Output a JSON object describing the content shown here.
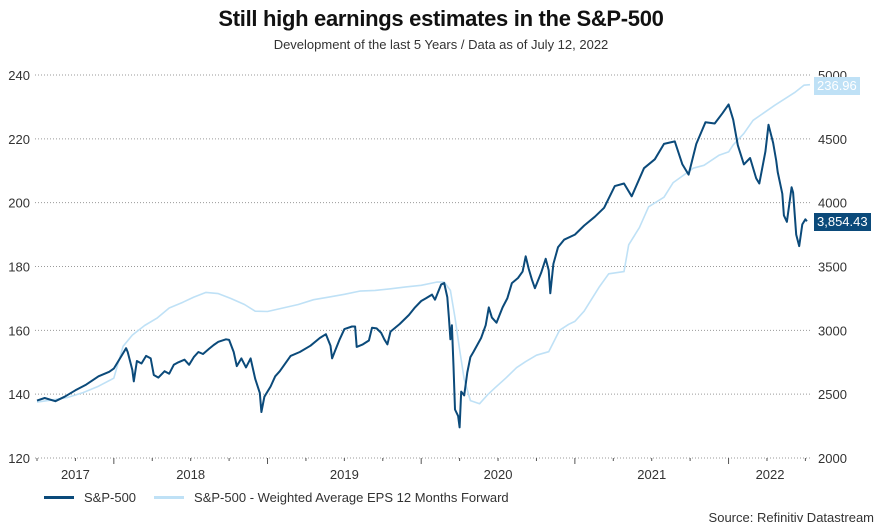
{
  "header": {
    "title": "Still high earnings estimates in the S&P-500",
    "subtitle": "Development of the last 5 Years / Data as of July 12, 2022"
  },
  "source": "Source: Refinitiv Datastream",
  "colors": {
    "sp500": "#0b4a7a",
    "eps": "#bfe1f6",
    "grid": "#9a9a9a",
    "tick": "#555555"
  },
  "end_labels": {
    "eps": "236.96",
    "sp500": "3,854.43"
  },
  "chart_data": {
    "type": "line",
    "title": "Still high earnings estimates in the S&P-500",
    "subtitle": "Development of the last 5 Years / Data as of July 12, 2022",
    "xlabel": "",
    "x_range": [
      2017.5,
      2022.53
    ],
    "x_ticks": [
      2018,
      2019,
      2020,
      2021,
      2022
    ],
    "x_tick_labels": [
      {
        "label": "2017",
        "at": 2017.75
      },
      {
        "label": "2018",
        "at": 2018.5
      },
      {
        "label": "2019",
        "at": 2019.5
      },
      {
        "label": "2020",
        "at": 2020.5
      },
      {
        "label": "2021",
        "at": 2021.5
      },
      {
        "label": "2022",
        "at": 2022.27
      }
    ],
    "y_left": {
      "label": "",
      "range": [
        120,
        240
      ],
      "ticks": [
        120,
        140,
        160,
        180,
        200,
        220,
        240
      ]
    },
    "y_right": {
      "label": "",
      "range": [
        2000,
        5000
      ],
      "ticks": [
        2000,
        2500,
        3000,
        3500,
        4000,
        4500,
        5000
      ]
    },
    "grid": true,
    "legend_position": "bottom-left",
    "series": [
      {
        "name": "S&P-500",
        "axis": "right",
        "last_value": 3854.43,
        "points": [
          [
            2017.5,
            2450
          ],
          [
            2017.55,
            2470
          ],
          [
            2017.62,
            2445
          ],
          [
            2017.68,
            2480
          ],
          [
            2017.75,
            2530
          ],
          [
            2017.82,
            2575
          ],
          [
            2017.9,
            2640
          ],
          [
            2017.97,
            2675
          ],
          [
            2018.0,
            2700
          ],
          [
            2018.04,
            2780
          ],
          [
            2018.08,
            2860
          ],
          [
            2018.09,
            2830
          ],
          [
            2018.12,
            2690
          ],
          [
            2018.13,
            2600
          ],
          [
            2018.15,
            2760
          ],
          [
            2018.18,
            2740
          ],
          [
            2018.21,
            2800
          ],
          [
            2018.24,
            2780
          ],
          [
            2018.26,
            2650
          ],
          [
            2018.29,
            2630
          ],
          [
            2018.33,
            2680
          ],
          [
            2018.36,
            2660
          ],
          [
            2018.39,
            2730
          ],
          [
            2018.42,
            2750
          ],
          [
            2018.46,
            2770
          ],
          [
            2018.49,
            2730
          ],
          [
            2018.52,
            2790
          ],
          [
            2018.55,
            2830
          ],
          [
            2018.58,
            2815
          ],
          [
            2018.62,
            2855
          ],
          [
            2018.65,
            2885
          ],
          [
            2018.68,
            2910
          ],
          [
            2018.73,
            2930
          ],
          [
            2018.75,
            2925
          ],
          [
            2018.78,
            2830
          ],
          [
            2018.8,
            2720
          ],
          [
            2018.83,
            2780
          ],
          [
            2018.86,
            2710
          ],
          [
            2018.89,
            2780
          ],
          [
            2018.92,
            2620
          ],
          [
            2018.95,
            2510
          ],
          [
            2018.96,
            2360
          ],
          [
            2018.98,
            2480
          ],
          [
            2019.02,
            2560
          ],
          [
            2019.05,
            2640
          ],
          [
            2019.08,
            2680
          ],
          [
            2019.15,
            2800
          ],
          [
            2019.21,
            2830
          ],
          [
            2019.28,
            2880
          ],
          [
            2019.34,
            2940
          ],
          [
            2019.38,
            2970
          ],
          [
            2019.41,
            2880
          ],
          [
            2019.42,
            2780
          ],
          [
            2019.44,
            2840
          ],
          [
            2019.47,
            2930
          ],
          [
            2019.5,
            3010
          ],
          [
            2019.55,
            3030
          ],
          [
            2019.57,
            3030
          ],
          [
            2019.58,
            2870
          ],
          [
            2019.62,
            2890
          ],
          [
            2019.66,
            2920
          ],
          [
            2019.68,
            3020
          ],
          [
            2019.71,
            3015
          ],
          [
            2019.74,
            2980
          ],
          [
            2019.76,
            2930
          ],
          [
            2019.78,
            2890
          ],
          [
            2019.8,
            2990
          ],
          [
            2019.86,
            3050
          ],
          [
            2019.92,
            3120
          ],
          [
            2019.96,
            3180
          ],
          [
            2020.0,
            3230
          ],
          [
            2020.03,
            3250
          ],
          [
            2020.07,
            3280
          ],
          [
            2020.09,
            3240
          ],
          [
            2020.11,
            3300
          ],
          [
            2020.13,
            3360
          ],
          [
            2020.15,
            3370
          ],
          [
            2020.17,
            3260
          ],
          [
            2020.18,
            3100
          ],
          [
            2020.19,
            2930
          ],
          [
            2020.2,
            3040
          ],
          [
            2020.21,
            2720
          ],
          [
            2020.22,
            2380
          ],
          [
            2020.24,
            2330
          ],
          [
            2020.25,
            2240
          ],
          [
            2020.26,
            2520
          ],
          [
            2020.28,
            2490
          ],
          [
            2020.3,
            2670
          ],
          [
            2020.32,
            2790
          ],
          [
            2020.34,
            2830
          ],
          [
            2020.39,
            2940
          ],
          [
            2020.42,
            3040
          ],
          [
            2020.44,
            3180
          ],
          [
            2020.46,
            3100
          ],
          [
            2020.49,
            3060
          ],
          [
            2020.53,
            3180
          ],
          [
            2020.56,
            3250
          ],
          [
            2020.59,
            3370
          ],
          [
            2020.63,
            3410
          ],
          [
            2020.66,
            3460
          ],
          [
            2020.68,
            3580
          ],
          [
            2020.7,
            3480
          ],
          [
            2020.72,
            3400
          ],
          [
            2020.74,
            3330
          ],
          [
            2020.78,
            3450
          ],
          [
            2020.81,
            3560
          ],
          [
            2020.83,
            3470
          ],
          [
            2020.84,
            3290
          ],
          [
            2020.86,
            3520
          ],
          [
            2020.89,
            3650
          ],
          [
            2020.93,
            3710
          ],
          [
            2021.0,
            3750
          ],
          [
            2021.06,
            3820
          ],
          [
            2021.13,
            3890
          ],
          [
            2021.19,
            3960
          ],
          [
            2021.26,
            4130
          ],
          [
            2021.32,
            4150
          ],
          [
            2021.37,
            4050
          ],
          [
            2021.45,
            4270
          ],
          [
            2021.52,
            4340
          ],
          [
            2021.58,
            4460
          ],
          [
            2021.65,
            4480
          ],
          [
            2021.7,
            4300
          ],
          [
            2021.74,
            4220
          ],
          [
            2021.79,
            4460
          ],
          [
            2021.85,
            4630
          ],
          [
            2021.91,
            4620
          ],
          [
            2021.96,
            4700
          ],
          [
            2022.0,
            4770
          ],
          [
            2022.03,
            4650
          ],
          [
            2022.06,
            4450
          ],
          [
            2022.1,
            4300
          ],
          [
            2022.14,
            4350
          ],
          [
            2022.18,
            4190
          ],
          [
            2022.2,
            4150
          ],
          [
            2022.24,
            4400
          ],
          [
            2022.26,
            4610
          ],
          [
            2022.29,
            4470
          ],
          [
            2022.31,
            4330
          ],
          [
            2022.32,
            4240
          ],
          [
            2022.35,
            4070
          ],
          [
            2022.36,
            3900
          ],
          [
            2022.38,
            3850
          ],
          [
            2022.41,
            4120
          ],
          [
            2022.42,
            4080
          ],
          [
            2022.44,
            3750
          ],
          [
            2022.46,
            3660
          ],
          [
            2022.48,
            3830
          ],
          [
            2022.5,
            3870
          ],
          [
            2022.51,
            3854.43
          ]
        ]
      },
      {
        "name": "S&P-500 - Weighted Average EPS 12 Months Forward",
        "axis": "left",
        "last_value": 236.96,
        "points": [
          [
            2017.5,
            137.5
          ],
          [
            2017.6,
            138.2
          ],
          [
            2017.7,
            139.0
          ],
          [
            2017.8,
            140.5
          ],
          [
            2017.9,
            142.5
          ],
          [
            2018.0,
            145.0
          ],
          [
            2018.03,
            150.0
          ],
          [
            2018.06,
            155.0
          ],
          [
            2018.12,
            158.5
          ],
          [
            2018.2,
            161.5
          ],
          [
            2018.28,
            163.8
          ],
          [
            2018.36,
            167.0
          ],
          [
            2018.45,
            168.8
          ],
          [
            2018.52,
            170.4
          ],
          [
            2018.6,
            171.9
          ],
          [
            2018.68,
            171.5
          ],
          [
            2018.76,
            170.0
          ],
          [
            2018.85,
            168.1
          ],
          [
            2018.92,
            166.0
          ],
          [
            2019.0,
            165.9
          ],
          [
            2019.1,
            167.0
          ],
          [
            2019.2,
            168.1
          ],
          [
            2019.3,
            169.6
          ],
          [
            2019.4,
            170.4
          ],
          [
            2019.5,
            171.3
          ],
          [
            2019.6,
            172.3
          ],
          [
            2019.7,
            172.5
          ],
          [
            2019.8,
            173.0
          ],
          [
            2019.9,
            173.6
          ],
          [
            2020.0,
            174.1
          ],
          [
            2020.1,
            175.1
          ],
          [
            2020.15,
            175.1
          ],
          [
            2020.19,
            172.5
          ],
          [
            2020.22,
            164.0
          ],
          [
            2020.25,
            154.0
          ],
          [
            2020.28,
            144.7
          ],
          [
            2020.32,
            138.0
          ],
          [
            2020.38,
            137.0
          ],
          [
            2020.43,
            139.7
          ],
          [
            2020.48,
            142.0
          ],
          [
            2020.55,
            145.0
          ],
          [
            2020.62,
            148.3
          ],
          [
            2020.68,
            150.2
          ],
          [
            2020.75,
            152.2
          ],
          [
            2020.83,
            153.3
          ],
          [
            2020.86,
            156.2
          ],
          [
            2020.9,
            160.0
          ],
          [
            2020.96,
            161.9
          ],
          [
            2021.0,
            162.8
          ],
          [
            2021.06,
            166.0
          ],
          [
            2021.16,
            173.7
          ],
          [
            2021.22,
            177.7
          ],
          [
            2021.32,
            178.4
          ],
          [
            2021.35,
            186.8
          ],
          [
            2021.42,
            192.2
          ],
          [
            2021.48,
            198.7
          ],
          [
            2021.58,
            201.7
          ],
          [
            2021.64,
            206.3
          ],
          [
            2021.71,
            208.7
          ],
          [
            2021.77,
            210.8
          ],
          [
            2021.84,
            211.7
          ],
          [
            2021.94,
            214.9
          ],
          [
            2022.0,
            215.9
          ],
          [
            2022.03,
            218.1
          ],
          [
            2022.1,
            221.7
          ],
          [
            2022.16,
            225.8
          ],
          [
            2022.3,
            230.5
          ],
          [
            2022.43,
            234.5
          ],
          [
            2022.49,
            236.8
          ],
          [
            2022.53,
            236.96
          ]
        ]
      }
    ]
  },
  "legend": {
    "items": [
      {
        "label": "S&P-500"
      },
      {
        "label": "S&P-500 - Weighted Average EPS 12 Months Forward"
      }
    ]
  }
}
